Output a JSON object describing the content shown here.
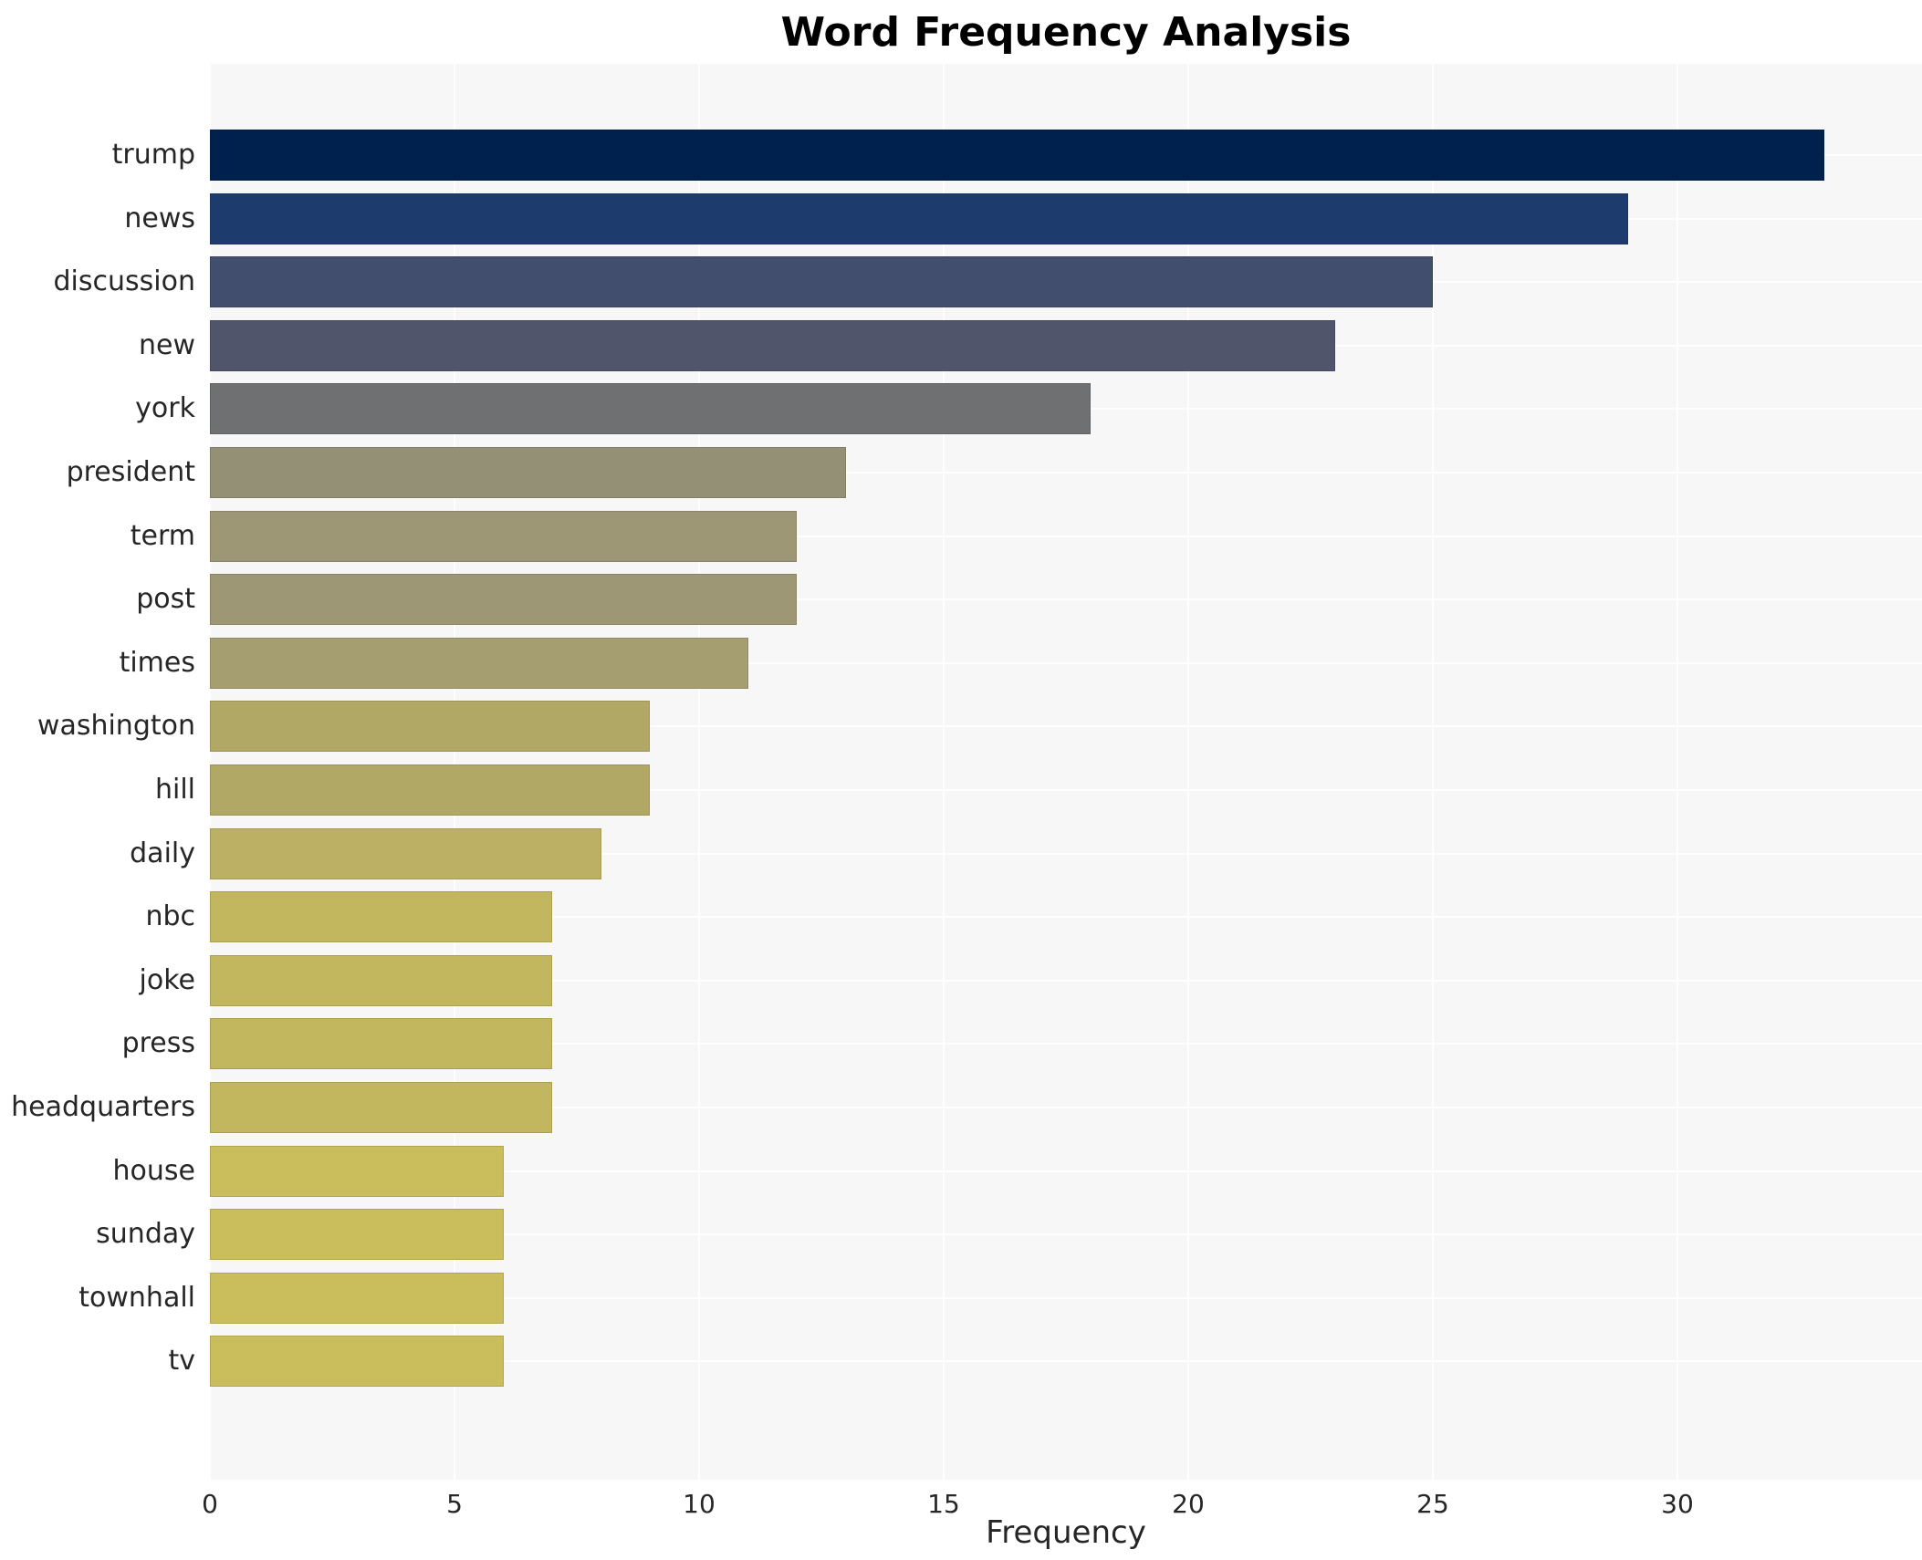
{
  "title": "Word Frequency Analysis",
  "x_axis": {
    "label": "Frequency",
    "ticks": [
      0,
      5,
      10,
      15,
      20,
      25,
      30
    ]
  },
  "style": {
    "plot_bg": "#f7f7f8",
    "grid_color": "#ffffff",
    "text_color": "#262626",
    "title_color": "#000000"
  },
  "chart_data": {
    "type": "bar",
    "orientation": "horizontal",
    "title": "Word Frequency Analysis",
    "xlabel": "Frequency",
    "ylabel": "",
    "xlim": [
      0,
      35
    ],
    "xticks": [
      0,
      5,
      10,
      15,
      20,
      25,
      30
    ],
    "grid": true,
    "legend": false,
    "categories": [
      "trump",
      "news",
      "discussion",
      "new",
      "york",
      "president",
      "term",
      "post",
      "times",
      "washington",
      "hill",
      "daily",
      "nbc",
      "joke",
      "press",
      "headquarters",
      "house",
      "sunday",
      "townhall",
      "tv"
    ],
    "values": [
      33,
      29,
      25,
      23,
      18,
      13,
      12,
      12,
      11,
      9,
      9,
      8,
      7,
      7,
      7,
      7,
      6,
      6,
      6,
      6
    ],
    "bar_colors": [
      "#00214e",
      "#1e3b6e",
      "#414e6e",
      "#51556c",
      "#6e7072",
      "#949076",
      "#9d9775",
      "#9d9775",
      "#a59e70",
      "#b1a866",
      "#b1a866",
      "#bbb064",
      "#c2b65f",
      "#c2b65f",
      "#c2b65f",
      "#c2b65f",
      "#cabd5b",
      "#cabd5b",
      "#cabd5b",
      "#cabd5b"
    ],
    "colormap": "cividis"
  }
}
